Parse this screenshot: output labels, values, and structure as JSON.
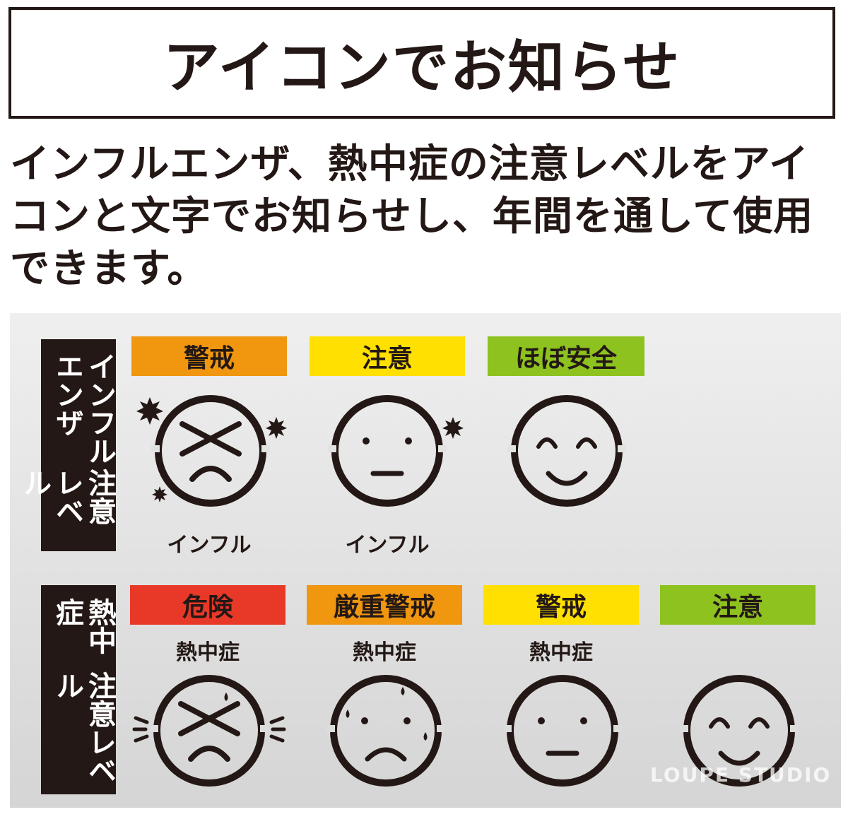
{
  "title": "アイコンでお知らせ",
  "description": "インフルエンザ、熱中症の注意レベルをアイコンと文字でお知らせし、年間を通して使用できます。",
  "influenza": {
    "side_line1": "インフルエンザ",
    "side_line2": "注意レベル",
    "levels": [
      {
        "label": "警戒",
        "color": "#f0960f",
        "caption": "インフル",
        "face": "x-frown-germs"
      },
      {
        "label": "注意",
        "color": "#ffe000",
        "caption": "インフル",
        "face": "neutral-germ"
      },
      {
        "label": "ほぼ安全",
        "color": "#8dc21f",
        "caption": "",
        "face": "smile"
      }
    ]
  },
  "heatstroke": {
    "side_line1": "熱中症",
    "side_line2": "注意レベル",
    "levels": [
      {
        "label": "危険",
        "color": "#e83828",
        "caption": "熱中症",
        "face": "x-frown-heat"
      },
      {
        "label": "厳重警戒",
        "color": "#f0960f",
        "caption": "熱中症",
        "face": "frown-sweat"
      },
      {
        "label": "警戒",
        "color": "#ffe000",
        "caption": "熱中症",
        "face": "neutral"
      },
      {
        "label": "注意",
        "color": "#8dc21f",
        "caption": "",
        "face": "smile"
      }
    ]
  },
  "watermark": "LOUPE STUDIO"
}
